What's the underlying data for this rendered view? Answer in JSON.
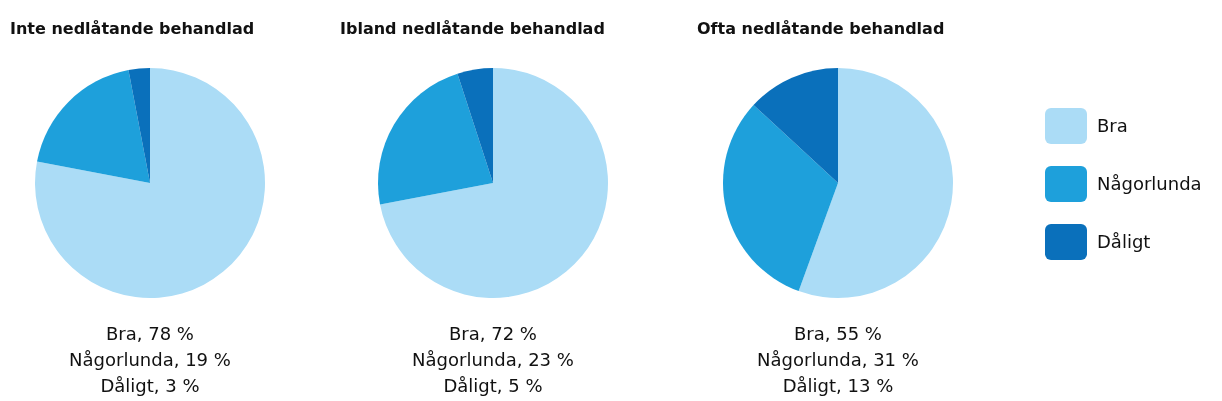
{
  "chart_data": [
    {
      "type": "pie",
      "title": "Inte nedlåtande behandlad",
      "categories": [
        null,
        null,
        null
      ],
      "values": [
        78,
        19,
        3
      ],
      "colors": [
        "#abdcf6",
        "#1ea0db",
        "#0a70bb"
      ],
      "annotations": [
        "Bra, 78 %",
        "Någorlunda, 19 %",
        "Dåligt, 3 %"
      ],
      "legend": false
    },
    {
      "type": "pie",
      "title": "Ibland nedlåtande behandlad",
      "categories": [
        null,
        null,
        null
      ],
      "values": [
        72,
        23,
        5
      ],
      "colors": [
        "#abdcf6",
        "#1ea0db",
        "#0a70bb"
      ],
      "annotations": [
        "Bra, 72 %",
        "Någorlunda, 23 %",
        "Dåligt, 5 %"
      ],
      "legend": false
    },
    {
      "type": "pie",
      "title": "Ofta nedlåtande behandlad",
      "categories": [
        "Bra",
        "Någorlunda",
        "Dåligt"
      ],
      "values": [
        55,
        31,
        13
      ],
      "colors": [
        "#abdcf6",
        "#1ea0db",
        "#0a70bb"
      ],
      "annotations": [
        "Bra, 55 %",
        "Någorlunda, 31 %",
        "Dåligt, 13 %"
      ],
      "legend": "right"
    }
  ]
}
